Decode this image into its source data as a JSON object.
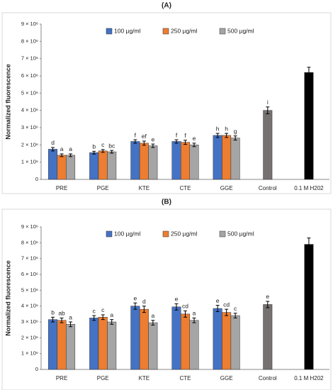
{
  "chart_data": [
    {
      "type": "bar",
      "title": "(A)",
      "y_label": "Normalized fluorescence",
      "categories": [
        "PRE",
        "PGE",
        "KTE",
        "CTE",
        "GGE",
        "Control",
        "0.1 M H202"
      ],
      "series": [
        {
          "name": "100 µg/ml",
          "color": "#4472c4",
          "values": [
            1750000,
            1550000,
            2200000,
            2200000,
            2550000,
            null,
            null
          ],
          "errors": [
            100000,
            80000,
            100000,
            100000,
            120000,
            null,
            null
          ],
          "letters": [
            "d",
            "b",
            "f",
            "f",
            "h",
            null,
            null
          ]
        },
        {
          "name": "250 µg/ml",
          "color": "#ed7d31",
          "values": [
            1400000,
            1650000,
            2100000,
            2150000,
            2550000,
            null,
            null
          ],
          "errors": [
            80000,
            80000,
            120000,
            120000,
            120000,
            null,
            null
          ],
          "letters": [
            "a",
            "c",
            "ef",
            "f",
            "h",
            null,
            null
          ]
        },
        {
          "name": "500 µg/ml",
          "color": "#a5a5a5",
          "values": [
            1400000,
            1600000,
            1950000,
            2000000,
            2400000,
            null,
            null
          ],
          "errors": [
            80000,
            80000,
            100000,
            100000,
            120000,
            null,
            null
          ],
          "letters": [
            "a",
            "bc",
            "e",
            "e",
            "g",
            null,
            null
          ]
        }
      ],
      "single_values": [
        null,
        null,
        null,
        null,
        null,
        4000000,
        6200000
      ],
      "single_errors": [
        null,
        null,
        null,
        null,
        null,
        200000,
        300000
      ],
      "single_colors": [
        null,
        null,
        null,
        null,
        null,
        "#767171",
        "#000000"
      ],
      "single_letters": [
        null,
        null,
        null,
        null,
        null,
        "i",
        null
      ],
      "ylim": [
        0,
        9000000
      ],
      "yticks": [
        0,
        {
          "value": 1000000,
          "label": "1 × 10⁶"
        },
        {
          "value": 2000000,
          "label": "2 × 10⁶"
        },
        {
          "value": 3000000,
          "label": "3 × 10⁶"
        },
        {
          "value": 4000000,
          "label": "4 × 10⁶"
        },
        {
          "value": 5000000,
          "label": "5 × 10⁶"
        },
        {
          "value": 6000000,
          "label": "6 × 10⁶"
        },
        {
          "value": 7000000,
          "label": "7 × 10⁶"
        },
        {
          "value": 8000000,
          "label": "8 × 10⁶"
        },
        {
          "value": 9000000,
          "label": "9 × 10⁶"
        }
      ],
      "legend": "top"
    },
    {
      "type": "bar",
      "title": "(B)",
      "y_label": "Normalized fluorescence",
      "categories": [
        "PRE",
        "PGE",
        "KTE",
        "CTE",
        "GGE",
        "Control",
        "0.1 M H202"
      ],
      "series": [
        {
          "name": "100 µg/ml",
          "color": "#4472c4",
          "values": [
            3150000,
            3250000,
            4000000,
            3950000,
            3850000,
            null,
            null
          ],
          "errors": [
            150000,
            150000,
            200000,
            200000,
            200000,
            null,
            null
          ],
          "letters": [
            "b",
            "c",
            "e",
            "e",
            "e",
            null,
            null
          ]
        },
        {
          "name": "250 µg/ml",
          "color": "#ed7d31",
          "values": [
            3100000,
            3300000,
            3800000,
            3500000,
            3600000,
            null,
            null
          ],
          "errors": [
            150000,
            150000,
            200000,
            200000,
            200000,
            null,
            null
          ],
          "letters": [
            "ab",
            "c",
            "d",
            "cd",
            "cd",
            null,
            null
          ]
        },
        {
          "name": "500 µg/ml",
          "color": "#a5a5a5",
          "values": [
            2850000,
            3000000,
            2950000,
            3100000,
            3400000,
            null,
            null
          ],
          "errors": [
            150000,
            150000,
            150000,
            150000,
            150000,
            null,
            null
          ],
          "letters": [
            "a",
            "a",
            "a",
            "a",
            "c",
            null,
            null
          ]
        }
      ],
      "single_values": [
        null,
        null,
        null,
        null,
        null,
        4100000,
        7900000
      ],
      "single_errors": [
        null,
        null,
        null,
        null,
        null,
        200000,
        400000
      ],
      "single_colors": [
        null,
        null,
        null,
        null,
        null,
        "#767171",
        "#000000"
      ],
      "single_letters": [
        null,
        null,
        null,
        null,
        null,
        "e",
        null
      ],
      "ylim": [
        0,
        9000000
      ],
      "yticks": [
        0,
        {
          "value": 1000000,
          "label": "1 × 10⁶"
        },
        {
          "value": 2000000,
          "label": "2 × 10⁶"
        },
        {
          "value": 3000000,
          "label": "3 × 10⁶"
        },
        {
          "value": 4000000,
          "label": "4 × 10⁶"
        },
        {
          "value": 5000000,
          "label": "5 × 10⁶"
        },
        {
          "value": 6000000,
          "label": "6 × 10⁶"
        },
        {
          "value": 7000000,
          "label": "7 × 10⁶"
        },
        {
          "value": 8000000,
          "label": "8 × 10⁶"
        },
        {
          "value": 9000000,
          "label": "9 × 10⁶"
        }
      ],
      "legend": "top"
    }
  ]
}
